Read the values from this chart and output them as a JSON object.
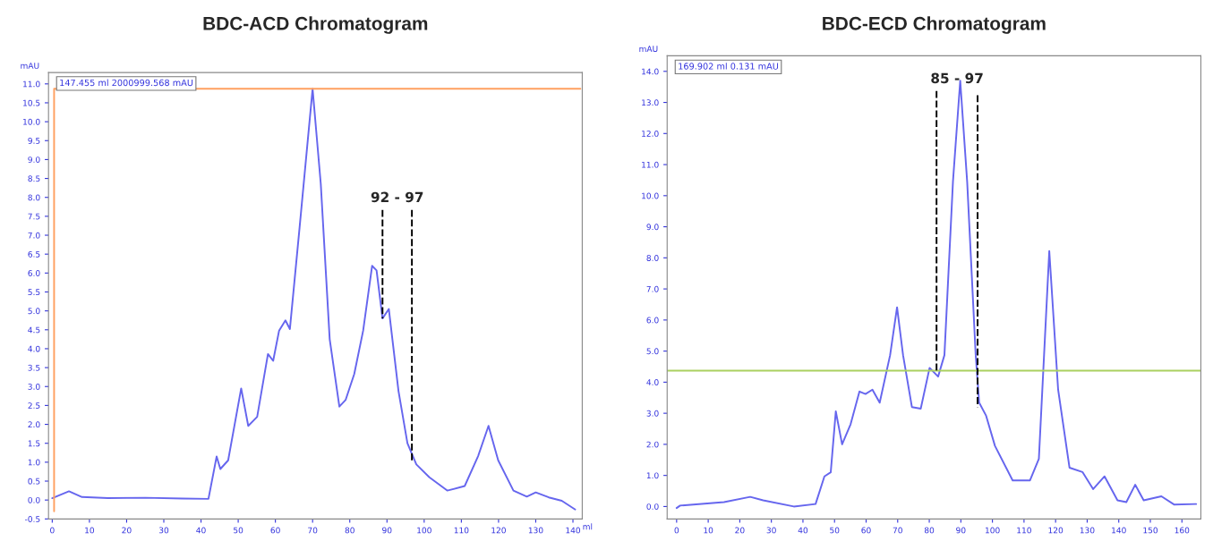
{
  "chart_data": [
    {
      "type": "line",
      "title": "BDC-ACD Chromatogram",
      "xlabel": "ml",
      "ylabel": "mAU",
      "xlim": [
        -1,
        142.5
      ],
      "ylim": [
        -0.5,
        11.3
      ],
      "xticks": [
        0,
        10,
        20,
        30,
        40,
        50,
        60,
        70,
        80,
        90,
        100,
        110,
        120,
        130,
        140
      ],
      "yticks": [
        {
          "value": -0.5,
          "label": "-0.5"
        },
        {
          "value": 0,
          "label": "0.0"
        },
        {
          "value": 0.5,
          "label": "0.5"
        },
        {
          "value": 1,
          "label": "1.0"
        },
        {
          "value": 1.5,
          "label": "1.5"
        },
        {
          "value": 2,
          "label": "2.0"
        },
        {
          "value": 2.5,
          "label": "2.5"
        },
        {
          "value": 3,
          "label": "3.0"
        },
        {
          "value": 3.5,
          "label": "3.5"
        },
        {
          "value": 4,
          "label": "4.0"
        },
        {
          "value": 4.5,
          "label": "4.5"
        },
        {
          "value": 5,
          "label": "5.0"
        },
        {
          "value": 5.5,
          "label": "5.5"
        },
        {
          "value": 6,
          "label": "6.0"
        },
        {
          "value": 6.5,
          "label": "6.5"
        },
        {
          "value": 7,
          "label": "7.0"
        },
        {
          "value": 7.5,
          "label": "7.5"
        },
        {
          "value": 8,
          "label": "8.0"
        },
        {
          "value": 8.5,
          "label": "8.5"
        },
        {
          "value": 9,
          "label": "9.0"
        },
        {
          "value": 9.5,
          "label": "9.5"
        },
        {
          "value": 10,
          "label": "10.0"
        },
        {
          "value": 10.5,
          "label": "10.5"
        },
        {
          "value": 11,
          "label": "11.0"
        }
      ],
      "grid": false,
      "legend": false,
      "series": [
        {
          "color": "#6666ee",
          "line_style": "solid",
          "x": [
            0,
            4.5,
            8,
            15,
            25,
            35,
            42,
            44.2,
            45.2,
            47.3,
            50.8,
            52.7,
            55.1,
            58,
            59.4,
            61,
            62.7,
            63.9,
            66.5,
            70,
            72.2,
            74.6,
            77.2,
            78.9,
            81.2,
            83.6,
            86,
            87.2,
            88.8,
            90.5,
            93.1,
            95.5,
            97.9,
            101.4,
            106.2,
            110.9,
            114.5,
            117.3,
            119.9,
            124,
            127.6,
            130,
            133.5,
            137,
            140.6
          ],
          "values": [
            0.05,
            0.23,
            0.08,
            0.05,
            0.06,
            0.04,
            0.03,
            1.15,
            0.82,
            1.05,
            2.95,
            1.96,
            2.2,
            3.86,
            3.68,
            4.48,
            4.75,
            4.52,
            7.2,
            10.87,
            8.36,
            4.25,
            2.47,
            2.65,
            3.33,
            4.48,
            6.19,
            6.07,
            4.8,
            5.05,
            2.88,
            1.5,
            0.94,
            0.6,
            0.25,
            0.37,
            1.16,
            1.96,
            1.05,
            0.25,
            0.09,
            0.2,
            0.07,
            -0.02,
            -0.25
          ]
        },
        {
          "color": "#ffa060",
          "line_style": "solid",
          "x": [
            0.5,
            0.5,
            142
          ],
          "values": [
            -0.3,
            10.87,
            10.87
          ]
        },
        {
          "color": "#000000",
          "line_style": "dashed",
          "x": [
            88.8,
            88.8
          ],
          "values": [
            7.67,
            4.8
          ]
        },
        {
          "color": "#000000",
          "line_style": "dashed",
          "x": [
            96.7,
            96.7
          ],
          "values": [
            7.67,
            1.0
          ]
        }
      ],
      "annotations": [
        "147.455 ml 2000999.568 mAU",
        "92 - 97"
      ]
    },
    {
      "type": "line",
      "title": "BDC-ECD Chromatogram",
      "ylabel": "mAU",
      "xlim": [
        -3,
        166
      ],
      "ylim": [
        -0.4,
        14.5
      ],
      "xticks": [
        0,
        10,
        20,
        30,
        40,
        50,
        60,
        70,
        80,
        90,
        100,
        110,
        120,
        130,
        140,
        150,
        160
      ],
      "yticks": [
        {
          "value": 0,
          "label": "0.0"
        },
        {
          "value": 1,
          "label": "1.0"
        },
        {
          "value": 2,
          "label": "2.0"
        },
        {
          "value": 3,
          "label": "3.0"
        },
        {
          "value": 4,
          "label": "4.0"
        },
        {
          "value": 5,
          "label": "5.0"
        },
        {
          "value": 6,
          "label": "6.0"
        },
        {
          "value": 7,
          "label": "7.0"
        },
        {
          "value": 8,
          "label": "8.0"
        },
        {
          "value": 9,
          "label": "9.0"
        },
        {
          "value": 10,
          "label": "10.0"
        },
        {
          "value": 11,
          "label": "11.0"
        },
        {
          "value": 12,
          "label": "12.0"
        },
        {
          "value": 13,
          "label": "13.0"
        },
        {
          "value": 14,
          "label": "14.0"
        }
      ],
      "grid": false,
      "legend": false,
      "series": [
        {
          "color": "#6666ee",
          "line_style": "solid",
          "x": [
            0,
            1.1,
            15,
            23.3,
            27.4,
            37.1,
            44,
            46.8,
            48.8,
            50.4,
            52.4,
            55.1,
            57.9,
            59.8,
            62,
            64.3,
            67.6,
            69.8,
            71.7,
            74.5,
            77.3,
            80.1,
            82.8,
            84.8,
            87.5,
            89.8,
            92,
            94.7,
            95.8,
            98,
            100.8,
            106.4,
            111.9,
            114.7,
            118,
            120.8,
            124.4,
            128.5,
            131.9,
            135.5,
            139.6,
            142.4,
            145.2,
            147.9,
            153.5,
            157.6,
            164.5
          ],
          "values": [
            -0.05,
            0.03,
            0.14,
            0.31,
            0.2,
            0.0,
            0.08,
            0.97,
            1.1,
            3.06,
            2.0,
            2.65,
            3.7,
            3.62,
            3.76,
            3.34,
            4.87,
            6.41,
            4.87,
            3.2,
            3.15,
            4.46,
            4.18,
            4.87,
            10.45,
            13.7,
            10.45,
            4.87,
            3.34,
            2.92,
            1.95,
            0.84,
            0.84,
            1.53,
            8.22,
            3.76,
            1.25,
            1.11,
            0.56,
            0.97,
            0.2,
            0.14,
            0.7,
            0.2,
            0.33,
            0.06,
            0.08
          ]
        },
        {
          "color": "#aad060",
          "line_style": "solid",
          "x": [
            -3,
            166
          ],
          "values": [
            4.37,
            4.37
          ]
        },
        {
          "color": "#000000",
          "line_style": "dashed",
          "x": [
            82.3,
            82.3
          ],
          "values": [
            13.37,
            4.32
          ]
        },
        {
          "color": "#000000",
          "line_style": "dashed",
          "x": [
            95.3,
            95.3
          ],
          "values": [
            13.23,
            3.2
          ]
        }
      ],
      "annotations": [
        "169.902 ml 0.131 mAU",
        "85 - 97"
      ]
    }
  ]
}
